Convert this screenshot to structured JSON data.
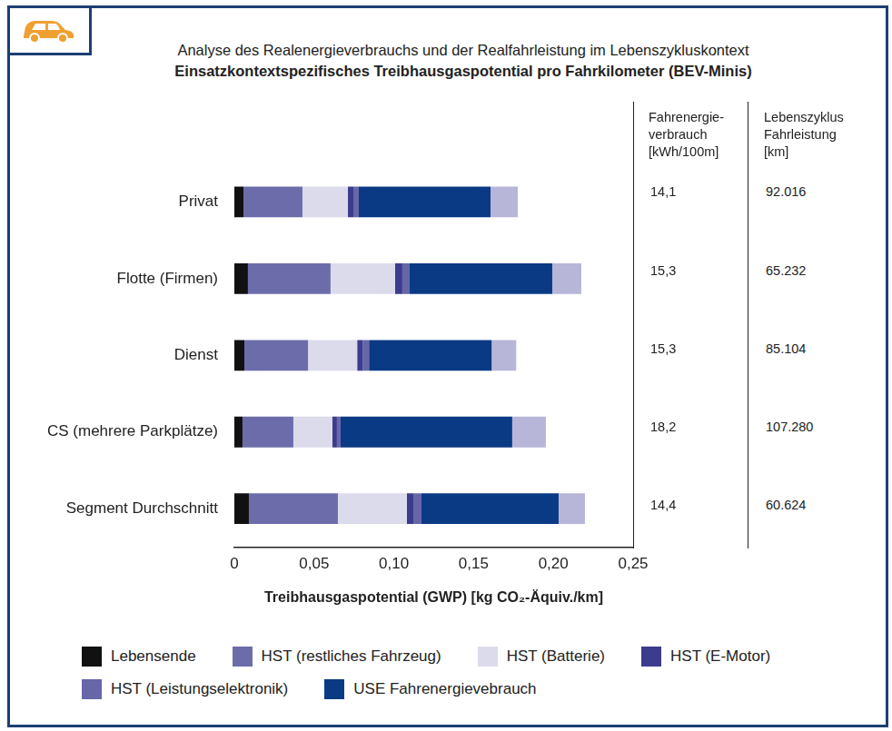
{
  "chart_data": {
    "type": "bar",
    "orientation": "horizontal",
    "stacked": true,
    "grid": false,
    "legend": "bottom",
    "title": "Analyse des Realenergieverbrauchs und der Realfahrleistung im Lebenszykluskontext",
    "subtitle": "Einsatzkontextspezifisches Treibhausgaspotential pro Fahrkilometer (BEV-Minis)",
    "x_label": "Treibhausgaspotential (GWP) [kg CO₂-Äquiv./km]",
    "categories": [
      "Privat",
      "Flotte (Firmen)",
      "Dienst",
      "CS (mehrere Parkplätze)",
      "Segment Durchschnitt"
    ],
    "series": [
      {
        "name": "Lebensende",
        "color": "#111111",
        "values": [
          0.0057,
          0.0085,
          0.0063,
          0.0051,
          0.0091
        ]
      },
      {
        "name": "HST (restliches Fahrzeug)",
        "color": "#6d6cab",
        "values": [
          0.037,
          0.0518,
          0.0399,
          0.0319,
          0.0558
        ]
      },
      {
        "name": "HST (Batterie)",
        "color": "#dcdbec",
        "values": [
          0.0285,
          0.0404,
          0.0308,
          0.0245,
          0.0433
        ]
      },
      {
        "name": "HST (E-Motor)",
        "color": "#3c3c8e",
        "values": [
          0.0034,
          0.0046,
          0.0034,
          0.0028,
          0.004
        ]
      },
      {
        "name": "HST (Leistungselektronik)",
        "color": "#6766a8",
        "values": [
          0.0034,
          0.0046,
          0.004,
          0.0023,
          0.0051
        ]
      },
      {
        "name": "USE Fahrenergievebrauch",
        "color": "#0b3a84",
        "values": [
          0.0826,
          0.0894,
          0.0769,
          0.1076,
          0.086
        ]
      },
      {
        "name": null,
        "color": "#b7b6d9",
        "values": [
          0.0171,
          0.0182,
          0.0154,
          0.0211,
          0.0165
        ]
      }
    ],
    "xlim": [
      0,
      0.25
    ],
    "xticks": [
      0,
      {
        "value": 0.05,
        "label": "0,05"
      },
      {
        "value": 0.1,
        "label": "0,10"
      },
      {
        "value": 0.15,
        "label": "0,15"
      },
      {
        "value": 0.2,
        "label": "0,20"
      },
      {
        "value": 0.25,
        "label": "0,25"
      }
    ]
  },
  "table": {
    "columns": [
      {
        "header": [
          "Fahrenergie-",
          "verbrauch",
          "[kWh/100m]"
        ],
        "cells": [
          "14,1",
          "15,3",
          "15,3",
          "18,2",
          "14,4"
        ]
      },
      {
        "header": [
          "Lebenszyklus",
          "Fahrleistung",
          "[km]"
        ],
        "cells": [
          "92.016",
          "65.232",
          "85.104",
          "107.280",
          "60.624"
        ]
      }
    ]
  }
}
